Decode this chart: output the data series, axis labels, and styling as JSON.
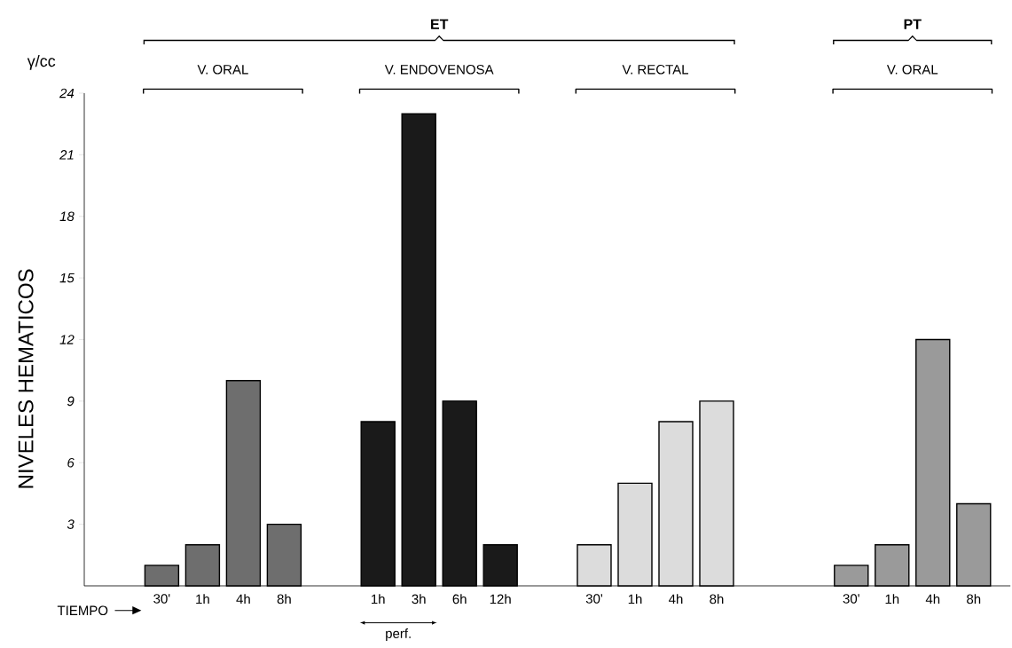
{
  "chart_data": {
    "type": "bar",
    "categories": [
      "30'",
      "1h",
      "4h",
      "8h",
      "1h",
      "3h",
      "6h",
      "12h",
      "30'",
      "1h",
      "4h",
      "8h",
      "30'",
      "1h",
      "4h",
      "8h"
    ],
    "values": [
      1,
      2,
      10,
      3,
      8,
      23,
      9,
      2,
      2,
      5,
      8,
      9,
      1,
      2,
      12,
      4
    ],
    "colors": [
      "#6e6e6e",
      "#6e6e6e",
      "#6e6e6e",
      "#6e6e6e",
      "#1a1a1a",
      "#1a1a1a",
      "#1a1a1a",
      "#1a1a1a",
      "#dcdcdc",
      "#dcdcdc",
      "#dcdcdc",
      "#dcdcdc",
      "#9a9a9a",
      "#9a9a9a",
      "#9a9a9a",
      "#9a9a9a"
    ],
    "ylabel": "NIVELES HEMATICOS",
    "ylim": [
      0,
      24
    ],
    "yticks": [
      3,
      6,
      9,
      12,
      15,
      18,
      21,
      24
    ],
    "grid": false,
    "annotations": [
      "ET",
      "PT",
      "V. ORAL",
      "V. ENDOVENOSA",
      "V. RECTAL",
      "V. ORAL",
      "γ/cc",
      "TIEMPO",
      "perf."
    ]
  }
}
